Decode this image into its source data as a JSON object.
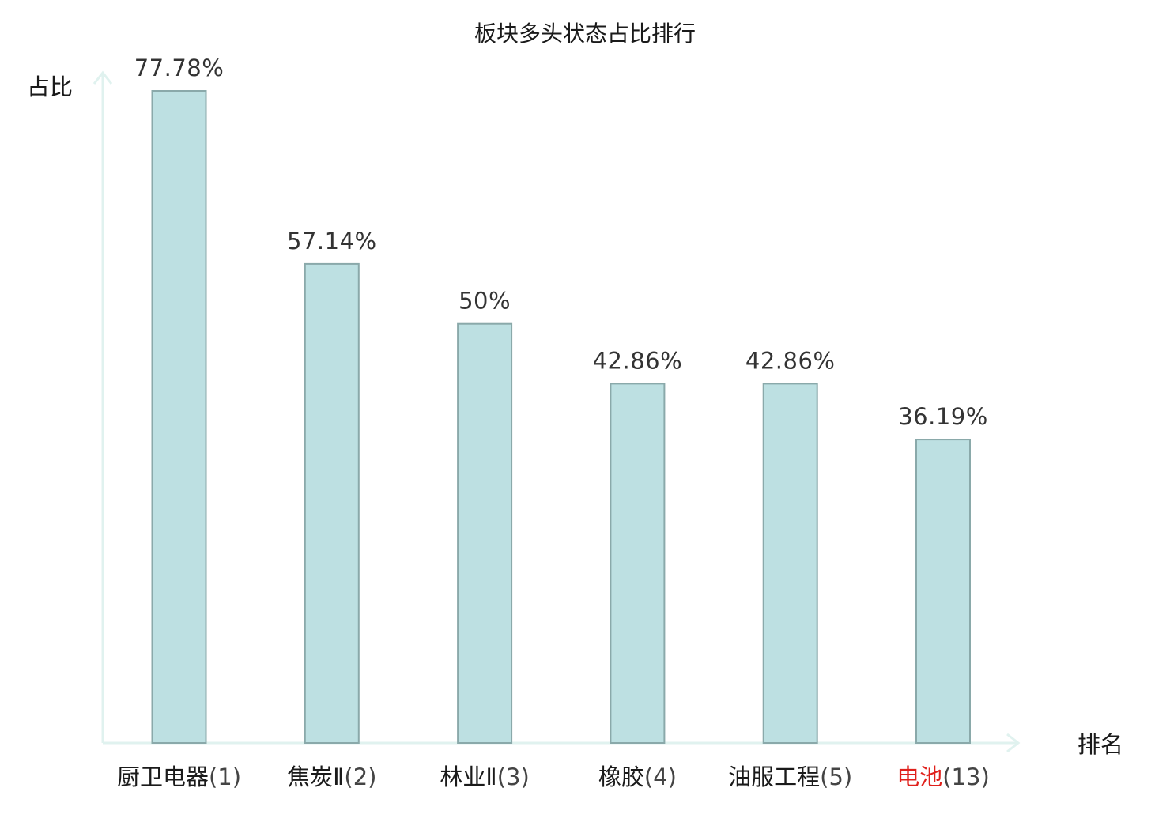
{
  "chart_data": {
    "type": "bar",
    "title": "板块多头状态占比排行",
    "ylabel": "占比",
    "xlabel": "排名",
    "ylim": [
      0,
      100
    ],
    "grid": false,
    "categories": [
      {
        "name": "厨卫电器",
        "rank": "(1)",
        "highlight": false
      },
      {
        "name": "焦炭Ⅱ",
        "rank": "(2)",
        "highlight": false
      },
      {
        "name": "林业Ⅱ",
        "rank": "(3)",
        "highlight": false
      },
      {
        "name": "橡胶",
        "rank": "(4)",
        "highlight": false
      },
      {
        "name": "油服工程",
        "rank": "(5)",
        "highlight": false
      },
      {
        "name": "电池",
        "rank": "(13)",
        "highlight": true
      }
    ],
    "values": [
      77.78,
      57.14,
      50,
      42.86,
      42.86,
      36.19
    ],
    "value_labels": [
      "77.78%",
      "57.14%",
      "50%",
      "42.86%",
      "42.86%",
      "36.19%"
    ],
    "colors": {
      "bar_fill": "#bde0e2",
      "bar_stroke": "#8aa9aa",
      "axis": "#e0f2ef",
      "highlight_text": "#e0201b"
    }
  }
}
